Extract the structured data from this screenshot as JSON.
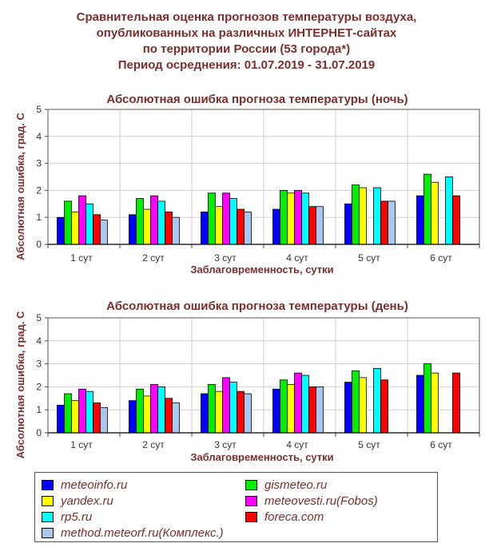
{
  "title_lines": [
    "Сравнительная оценка прогнозов температуры воздуха,",
    "опубликованных на различных ИНТЕРНЕТ-сайтах",
    "по территории России (53 города*)",
    "Период осреднения: 01.07.2019 - 31.07.2019"
  ],
  "legend": [
    {
      "name": "meteoinfo.ru",
      "color": "#0000ff"
    },
    {
      "name": "gismeteo.ru",
      "color": "#00ee00"
    },
    {
      "name": "yandex.ru",
      "color": "#ffff00"
    },
    {
      "name": "meteovesti.ru(Fobos)",
      "color": "#ff00ff"
    },
    {
      "name": "rp5.ru",
      "color": "#00ffff"
    },
    {
      "name": "foreca.com",
      "color": "#ff0000"
    },
    {
      "name": "method.meteorf.ru(Комплекс.)",
      "color": "#a8c8f0"
    }
  ],
  "chart_data": [
    {
      "type": "bar",
      "title": "Абсолютная ошибка прогноза температуры (ночь)",
      "xlabel": "Заблаговременность, сутки",
      "ylabel": "Абсолютная ошибка, град. С",
      "ylim": [
        0,
        5
      ],
      "yticks": [
        "0",
        "1",
        "2",
        "3",
        "4",
        "5"
      ],
      "categories": [
        "1 сут",
        "2 сут",
        "3 сут",
        "4 сут",
        "5 сут",
        "6 сут"
      ],
      "grid": true,
      "series": [
        {
          "name": "meteoinfo.ru",
          "color": "#0000ff",
          "values": [
            1.0,
            1.1,
            1.2,
            1.3,
            1.5,
            1.8
          ]
        },
        {
          "name": "gismeteo.ru",
          "color": "#00ee00",
          "values": [
            1.6,
            1.7,
            1.9,
            2.0,
            2.2,
            2.6
          ]
        },
        {
          "name": "yandex.ru",
          "color": "#ffff00",
          "values": [
            1.2,
            1.3,
            1.4,
            1.9,
            2.1,
            2.3
          ]
        },
        {
          "name": "meteovesti.ru(Fobos)",
          "color": "#ff00ff",
          "values": [
            1.8,
            1.8,
            1.9,
            2.0,
            null,
            null
          ]
        },
        {
          "name": "rp5.ru",
          "color": "#00ffff",
          "values": [
            1.5,
            1.6,
            1.7,
            1.9,
            2.1,
            2.5
          ]
        },
        {
          "name": "foreca.com",
          "color": "#ff0000",
          "values": [
            1.1,
            1.2,
            1.3,
            1.4,
            1.6,
            1.8
          ]
        },
        {
          "name": "method.meteorf.ru(Комплекс.)",
          "color": "#a8c8f0",
          "values": [
            0.9,
            1.0,
            1.2,
            1.4,
            1.6,
            null
          ]
        }
      ]
    },
    {
      "type": "bar",
      "title": "Абсолютная ошибка прогноза температуры (день)",
      "xlabel": "Заблаговременность, сутки",
      "ylabel": "Абсолютная ошибка, град. С",
      "ylim": [
        0,
        5
      ],
      "yticks": [
        "0",
        "1",
        "2",
        "3",
        "4",
        "5"
      ],
      "categories": [
        "1 сут",
        "2 сут",
        "3 сут",
        "4 сут",
        "5 сут",
        "6 сут"
      ],
      "grid": true,
      "series": [
        {
          "name": "meteoinfo.ru",
          "color": "#0000ff",
          "values": [
            1.2,
            1.4,
            1.7,
            1.9,
            2.2,
            2.5
          ]
        },
        {
          "name": "gismeteo.ru",
          "color": "#00ee00",
          "values": [
            1.7,
            1.9,
            2.1,
            2.3,
            2.7,
            3.0
          ]
        },
        {
          "name": "yandex.ru",
          "color": "#ffff00",
          "values": [
            1.4,
            1.6,
            1.8,
            2.1,
            2.4,
            2.6
          ]
        },
        {
          "name": "meteovesti.ru(Fobos)",
          "color": "#ff00ff",
          "values": [
            1.9,
            2.1,
            2.4,
            2.6,
            null,
            null
          ]
        },
        {
          "name": "rp5.ru",
          "color": "#00ffff",
          "values": [
            1.8,
            2.0,
            2.2,
            2.5,
            2.8,
            null
          ]
        },
        {
          "name": "foreca.com",
          "color": "#ff0000",
          "values": [
            1.3,
            1.5,
            1.8,
            2.0,
            2.3,
            2.6
          ]
        },
        {
          "name": "method.meteorf.ru(Комплекс.)",
          "color": "#a8c8f0",
          "values": [
            1.1,
            1.3,
            1.7,
            2.0,
            null,
            null
          ]
        }
      ]
    }
  ]
}
